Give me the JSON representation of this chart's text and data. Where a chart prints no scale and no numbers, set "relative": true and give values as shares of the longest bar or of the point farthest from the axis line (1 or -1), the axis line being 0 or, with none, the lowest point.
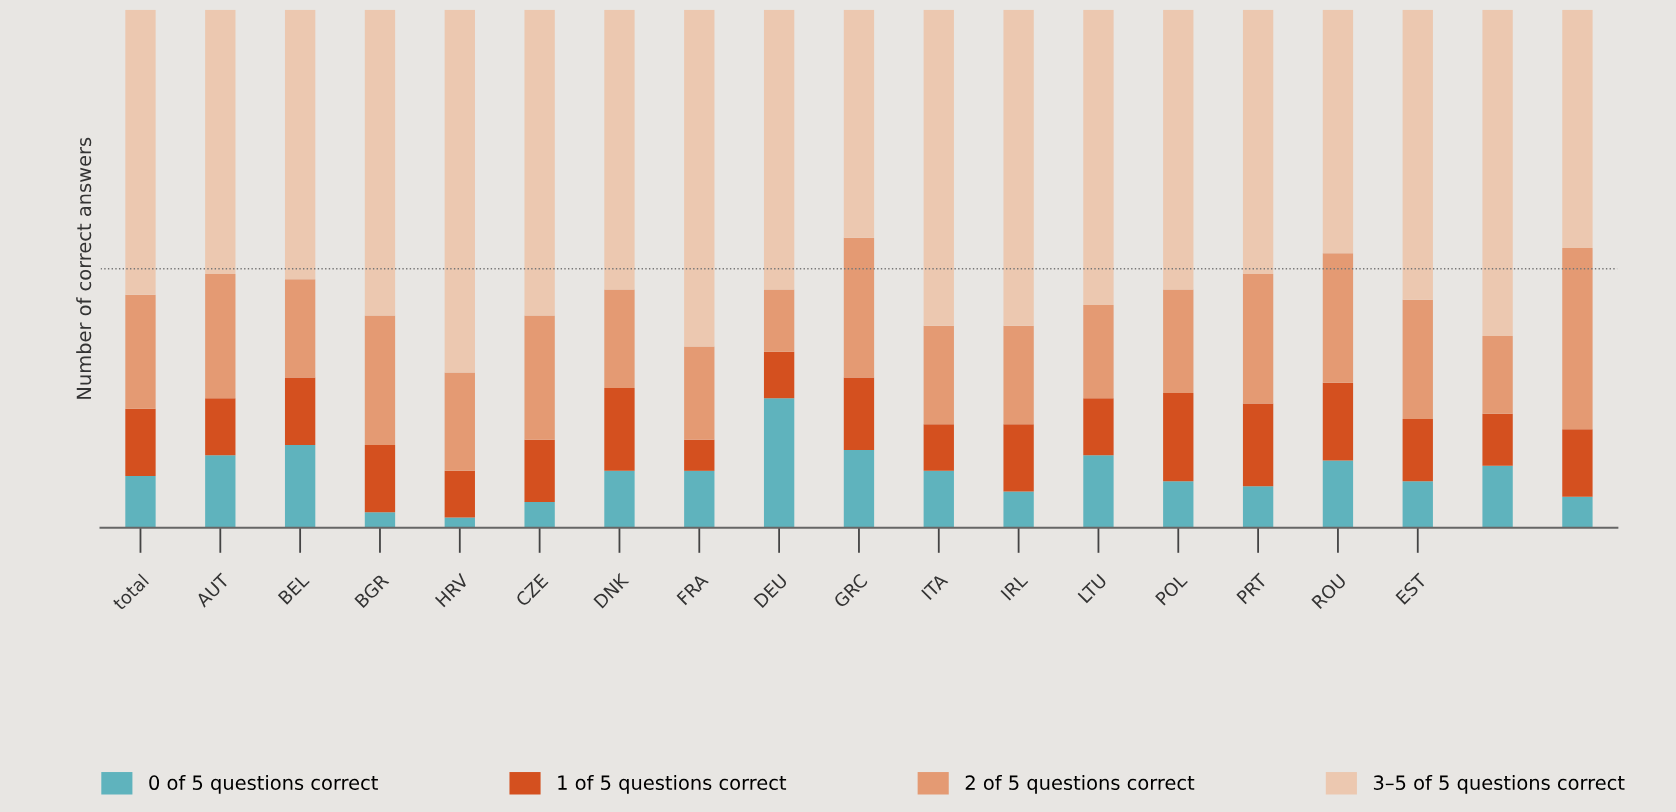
{
  "chart_data": {
    "type": "bar",
    "stacked": true,
    "relative": true,
    "ylabel": "Number of correct answers",
    "categories": [
      "total",
      "AUT",
      "BEL",
      "BGR",
      "HRV",
      "CZE",
      "DNK",
      "FRA",
      "DEU",
      "GRC",
      "ITA",
      "IRL",
      "LTU",
      "POL",
      "PRT",
      "ROU",
      "EST",
      null,
      null
    ],
    "series": [
      {
        "name": "0 of 5 questions correct",
        "color": "#5fb3bd",
        "values": [
          0.1,
          0.14,
          0.16,
          0.03,
          0.02,
          0.05,
          0.11,
          0.11,
          0.25,
          0.15,
          0.11,
          0.07,
          0.14,
          0.09,
          0.08,
          0.13,
          0.09,
          0.12,
          0.06
        ]
      },
      {
        "name": "1 of 5 questions correct",
        "color": "#d4501f",
        "values": [
          0.13,
          0.11,
          0.13,
          0.13,
          0.09,
          0.12,
          0.16,
          0.06,
          0.09,
          0.14,
          0.09,
          0.13,
          0.11,
          0.17,
          0.16,
          0.15,
          0.12,
          0.1,
          0.13
        ]
      },
      {
        "name": "2 of 5 questions correct",
        "color": "#e49a73",
        "values": [
          0.22,
          0.24,
          0.19,
          0.25,
          0.19,
          0.24,
          0.19,
          0.18,
          0.12,
          0.27,
          0.19,
          0.19,
          0.18,
          0.2,
          0.25,
          0.25,
          0.23,
          0.15,
          0.35
        ]
      },
      {
        "name": "3–5 of 5 questions correct",
        "color": "#ecc8b0",
        "values": [
          0.55,
          0.51,
          0.52,
          0.59,
          0.7,
          0.59,
          0.54,
          0.65,
          0.54,
          0.44,
          0.61,
          0.61,
          0.57,
          0.54,
          0.51,
          0.47,
          0.56,
          0.63,
          0.46
        ]
      }
    ],
    "ref_lines": [
      {
        "axis": "y",
        "value": 0.5,
        "color": "#777777",
        "line_style": "dotted"
      }
    ],
    "legend": "bottom",
    "grid": false
  }
}
